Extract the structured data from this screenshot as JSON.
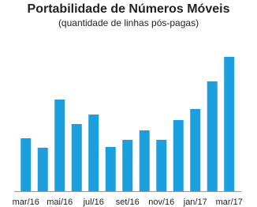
{
  "chart_data": {
    "type": "bar",
    "title": "Portabilidade de Números Móveis",
    "subtitle": "(quantidade de linhas pós-pagas)",
    "categories": [
      "mar/16",
      null,
      "mai/16",
      null,
      "jul/16",
      null,
      "set/16",
      null,
      "nov/16",
      null,
      "jan/17",
      null,
      "mar/17"
    ],
    "values": [
      67,
      55,
      116,
      85,
      97,
      56,
      65,
      77,
      65,
      90,
      104,
      139,
      170
    ],
    "color": "#1b9fdf"
  }
}
